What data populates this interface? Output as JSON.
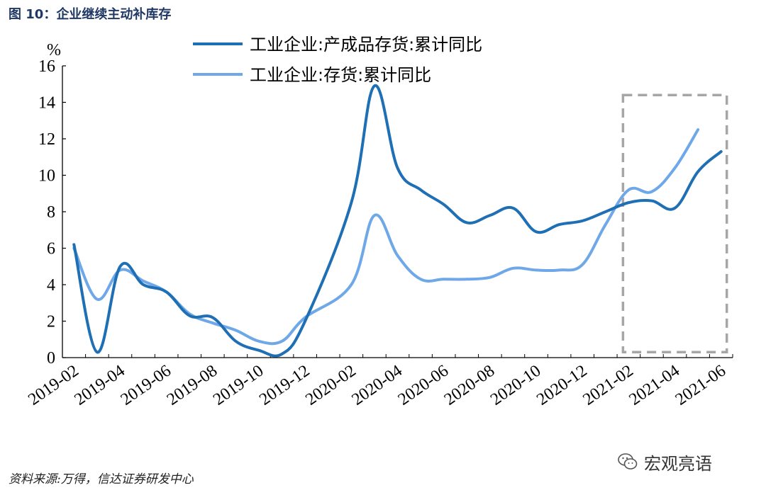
{
  "figure_title": "图 10：企业继续主动补库存",
  "source": "资料来源:万得，信达证券研发中心",
  "watermark": {
    "icon": "wechat-icon",
    "text": "宏观亮语"
  },
  "colors": {
    "dark_series": "#1f6fb5",
    "light_series": "#6fa8e8",
    "highlight_box": "#a6a6a6",
    "title": "#1f3864"
  },
  "chart_data": {
    "type": "line",
    "ylabel": "%",
    "ylim": [
      0,
      16
    ],
    "yticks": [
      0,
      2,
      4,
      6,
      8,
      10,
      12,
      14,
      16
    ],
    "xticks": [
      "2019-02",
      "2019-04",
      "2019-06",
      "2019-08",
      "2019-10",
      "2019-12",
      "2020-02",
      "2020-04",
      "2020-06",
      "2020-08",
      "2020-10",
      "2020-12",
      "2021-02",
      "2021-04",
      "2021-06"
    ],
    "xlim": [
      "2019-02",
      "2021-06"
    ],
    "legend_position": "top",
    "highlight_region": {
      "x": [
        "2021-02",
        "2021-06"
      ],
      "y": [
        0.3,
        14.4
      ],
      "style": "dashed"
    },
    "series": [
      {
        "name": "工业企业:产成品存货:累计同比",
        "color": "#1f6fb5",
        "x": [
          "2019-02",
          "2019-03",
          "2019-04",
          "2019-05",
          "2019-06",
          "2019-07",
          "2019-08",
          "2019-09",
          "2019-10",
          "2019-11",
          "2019-12",
          "2020-02",
          "2020-03",
          "2020-04",
          "2020-05",
          "2020-06",
          "2020-07",
          "2020-08",
          "2020-09",
          "2020-10",
          "2020-11",
          "2020-12",
          "2021-01",
          "2021-02",
          "2021-03",
          "2021-04",
          "2021-05",
          "2021-06"
        ],
        "values": [
          6.2,
          0.3,
          5.0,
          4.0,
          3.6,
          2.3,
          2.2,
          0.9,
          0.4,
          0.2,
          2.0,
          8.5,
          14.9,
          10.4,
          9.2,
          8.4,
          7.4,
          7.8,
          8.2,
          6.9,
          7.3,
          7.5,
          8.0,
          8.5,
          8.6,
          8.2,
          10.2,
          11.3
        ]
      },
      {
        "name": "工业企业:存货:累计同比",
        "color": "#6fa8e8",
        "x": [
          "2019-02",
          "2019-03",
          "2019-04",
          "2019-05",
          "2019-06",
          "2019-07",
          "2019-08",
          "2019-09",
          "2019-10",
          "2019-11",
          "2019-12",
          "2020-02",
          "2020-03",
          "2020-04",
          "2020-05",
          "2020-06",
          "2020-07",
          "2020-08",
          "2020-09",
          "2020-10",
          "2020-11",
          "2020-12",
          "2021-01",
          "2021-02",
          "2021-03",
          "2021-04",
          "2021-05"
        ],
        "values": [
          6.0,
          3.2,
          4.8,
          4.2,
          3.6,
          2.4,
          1.9,
          1.5,
          0.9,
          0.9,
          2.2,
          4.0,
          7.8,
          5.6,
          4.3,
          4.3,
          4.3,
          4.4,
          4.9,
          4.8,
          4.8,
          5.1,
          7.3,
          9.2,
          9.1,
          10.4,
          12.5
        ]
      }
    ]
  }
}
